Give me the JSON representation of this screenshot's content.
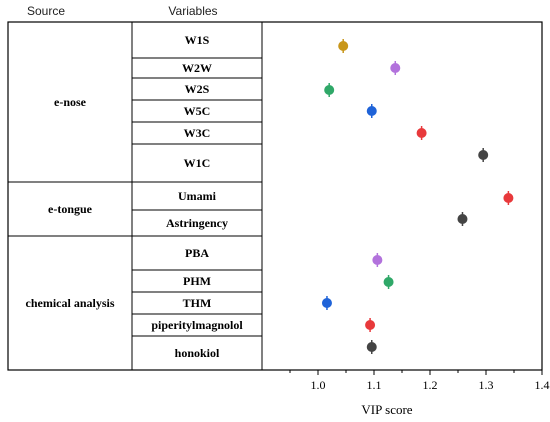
{
  "headers": {
    "source": "Source",
    "variables": "Variables"
  },
  "chart_data": {
    "type": "scatter",
    "xlabel": "VIP score",
    "xlim": [
      0.9,
      1.4
    ],
    "xticks": [
      "1.0",
      "1.1",
      "1.2",
      "1.3",
      "1.4"
    ],
    "xtick_values": [
      1.0,
      1.1,
      1.2,
      1.3,
      1.4
    ],
    "grid": false,
    "groups": [
      {
        "source": "e-nose",
        "variables": [
          {
            "name": "W1S",
            "vip": 1.045,
            "color": "#c8961a"
          },
          {
            "name": "W2W",
            "vip": 1.138,
            "color": "#b272dc"
          },
          {
            "name": "W2S",
            "vip": 1.02,
            "color": "#2fa868"
          },
          {
            "name": "W5C",
            "vip": 1.096,
            "color": "#1f63d8"
          },
          {
            "name": "W3C",
            "vip": 1.185,
            "color": "#e8393b"
          },
          {
            "name": "W1C",
            "vip": 1.295,
            "color": "#444444"
          }
        ]
      },
      {
        "source": "e-tongue",
        "variables": [
          {
            "name": "Umami",
            "vip": 1.34,
            "color": "#e8393b"
          },
          {
            "name": "Astringency",
            "vip": 1.258,
            "color": "#444444"
          }
        ]
      },
      {
        "source": "chemical analysis",
        "variables": [
          {
            "name": "PBA",
            "vip": 1.106,
            "color": "#b272dc"
          },
          {
            "name": "PHM",
            "vip": 1.126,
            "color": "#2fa868"
          },
          {
            "name": "THM",
            "vip": 1.016,
            "color": "#1f63d8"
          },
          {
            "name": "piperitylmagnolol",
            "vip": 1.093,
            "color": "#e8393b"
          },
          {
            "name": "honokiol",
            "vip": 1.096,
            "color": "#444444"
          }
        ]
      }
    ]
  }
}
